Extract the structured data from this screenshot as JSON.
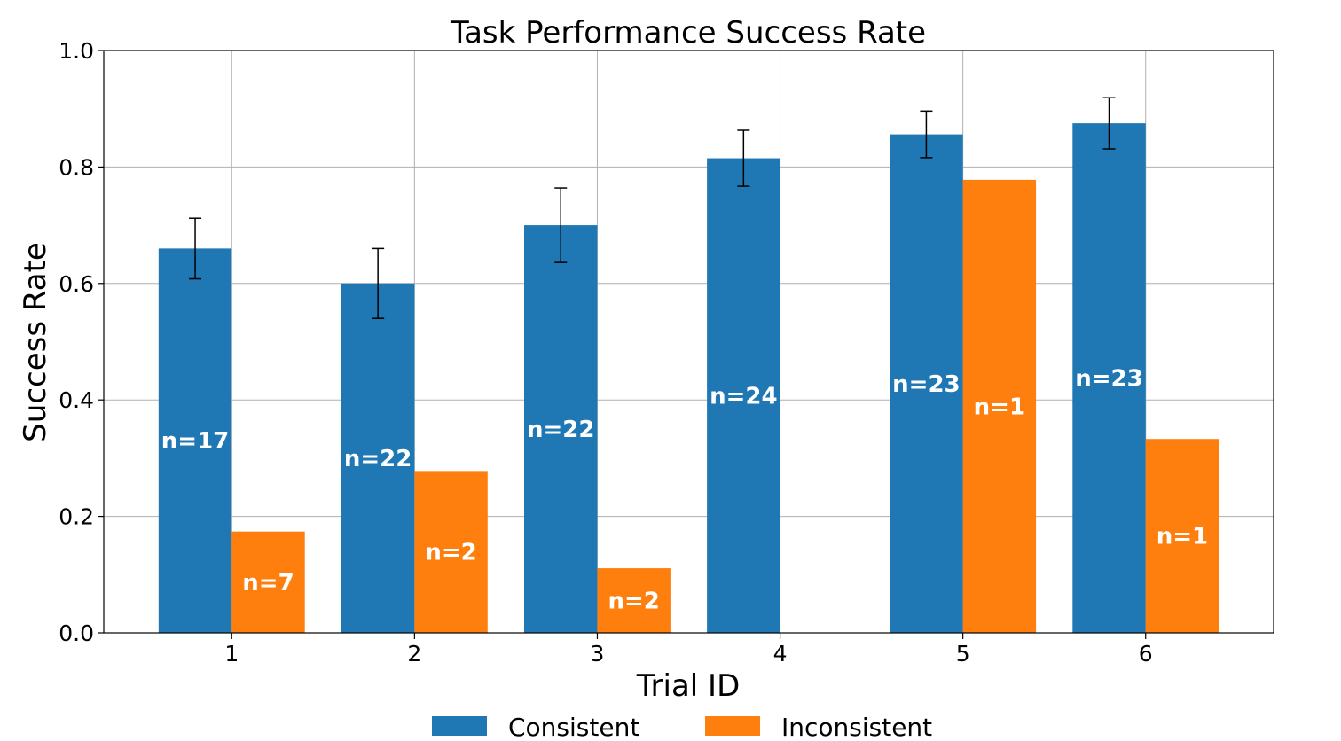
{
  "chart_data": {
    "type": "bar",
    "title": "Task Performance Success Rate",
    "xlabel": "Trial ID",
    "ylabel": "Success Rate",
    "ylim": [
      0,
      1.0
    ],
    "grid": true,
    "legend_position": "bottom-center",
    "categories": [
      "1",
      "2",
      "3",
      "4",
      "5",
      "6"
    ],
    "yticks": [
      "0.0",
      "0.2",
      "0.4",
      "0.6",
      "0.8",
      "1.0"
    ],
    "series": [
      {
        "name": "Consistent",
        "color": "#1f77b4",
        "values": [
          0.66,
          0.6,
          0.7,
          0.815,
          0.856,
          0.875
        ],
        "errors": [
          0.052,
          0.06,
          0.064,
          0.048,
          0.04,
          0.044
        ],
        "labels": [
          "n=17",
          "n=22",
          "n=22",
          "n=24",
          "n=23",
          "n=23"
        ]
      },
      {
        "name": "Inconsistent",
        "color": "#ff7f0e",
        "values": [
          0.174,
          0.278,
          0.111,
          null,
          0.778,
          0.333
        ],
        "errors": [
          null,
          null,
          null,
          null,
          null,
          null
        ],
        "labels": [
          "n=7",
          "n=2",
          "n=2",
          null,
          "n=1",
          "n=1"
        ]
      }
    ]
  }
}
